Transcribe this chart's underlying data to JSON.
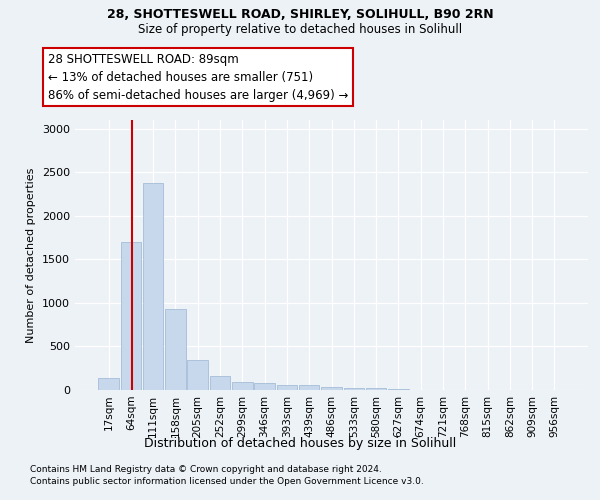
{
  "title1": "28, SHOTTESWELL ROAD, SHIRLEY, SOLIHULL, B90 2RN",
  "title2": "Size of property relative to detached houses in Solihull",
  "xlabel": "Distribution of detached houses by size in Solihull",
  "ylabel": "Number of detached properties",
  "bin_labels": [
    "17sqm",
    "64sqm",
    "111sqm",
    "158sqm",
    "205sqm",
    "252sqm",
    "299sqm",
    "346sqm",
    "393sqm",
    "439sqm",
    "486sqm",
    "533sqm",
    "580sqm",
    "627sqm",
    "674sqm",
    "721sqm",
    "768sqm",
    "815sqm",
    "862sqm",
    "909sqm",
    "956sqm"
  ],
  "bar_heights": [
    140,
    1700,
    2380,
    930,
    350,
    165,
    90,
    75,
    55,
    55,
    30,
    25,
    25,
    10,
    5,
    3,
    2,
    2,
    1,
    1,
    1
  ],
  "bar_color": "#c8d8ec",
  "bar_edgecolor": "#9ab5d4",
  "vline_color": "#cc0000",
  "annotation_text": "28 SHOTTESWELL ROAD: 89sqm\n← 13% of detached houses are smaller (751)\n86% of semi-detached houses are larger (4,969) →",
  "annotation_box_edgecolor": "#cc0000",
  "annotation_box_facecolor": "#ffffff",
  "ylim_max": 3100,
  "yticks": [
    0,
    500,
    1000,
    1500,
    2000,
    2500,
    3000
  ],
  "footnote1": "Contains HM Land Registry data © Crown copyright and database right 2024.",
  "footnote2": "Contains public sector information licensed under the Open Government Licence v3.0.",
  "background_color": "#edf2f7",
  "plot_background": "#edf2f7"
}
